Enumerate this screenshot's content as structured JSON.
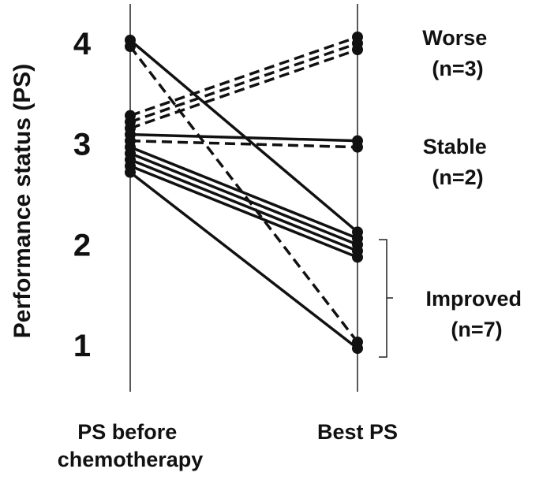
{
  "chart_data": {
    "type": "line",
    "ylabel": "Performance status (PS)",
    "yticks": [
      "1",
      "2",
      "3",
      "4"
    ],
    "ylim": [
      0.5,
      4.25
    ],
    "categories": [
      "PS before chemotherapy",
      "Best PS"
    ],
    "category_lines": [
      [
        "PS before",
        "chemotherapy"
      ],
      [
        "Best PS"
      ]
    ],
    "grid": false,
    "legend": "none",
    "series": [
      {
        "group": "Worse",
        "style": "dashed",
        "values": [
          3,
          4
        ]
      },
      {
        "group": "Worse",
        "style": "dashed",
        "values": [
          3,
          4
        ]
      },
      {
        "group": "Worse",
        "style": "dashed",
        "values": [
          3,
          4
        ]
      },
      {
        "group": "Stable",
        "style": "solid",
        "values": [
          3,
          3
        ]
      },
      {
        "group": "Stable",
        "style": "dashed",
        "values": [
          3,
          3
        ]
      },
      {
        "group": "Improved",
        "style": "solid",
        "values": [
          4,
          2
        ]
      },
      {
        "group": "Improved",
        "style": "dashed",
        "values": [
          4,
          1
        ]
      },
      {
        "group": "Improved",
        "style": "solid",
        "values": [
          3,
          2
        ]
      },
      {
        "group": "Improved",
        "style": "solid",
        "values": [
          3,
          2
        ]
      },
      {
        "group": "Improved",
        "style": "solid",
        "values": [
          3,
          2
        ]
      },
      {
        "group": "Improved",
        "style": "solid",
        "values": [
          3,
          2
        ]
      },
      {
        "group": "Improved",
        "style": "solid",
        "values": [
          3,
          1
        ]
      }
    ],
    "annotations": [
      {
        "id": "worse",
        "lines": [
          "Worse",
          "(n=3)"
        ]
      },
      {
        "id": "stable",
        "lines": [
          "Stable",
          "(n=2)"
        ]
      },
      {
        "id": "improved",
        "lines": [
          "Improved",
          "(n=7)"
        ]
      }
    ],
    "colors": {
      "line": "#111111",
      "axis": "#222222",
      "text": "#111111"
    }
  }
}
